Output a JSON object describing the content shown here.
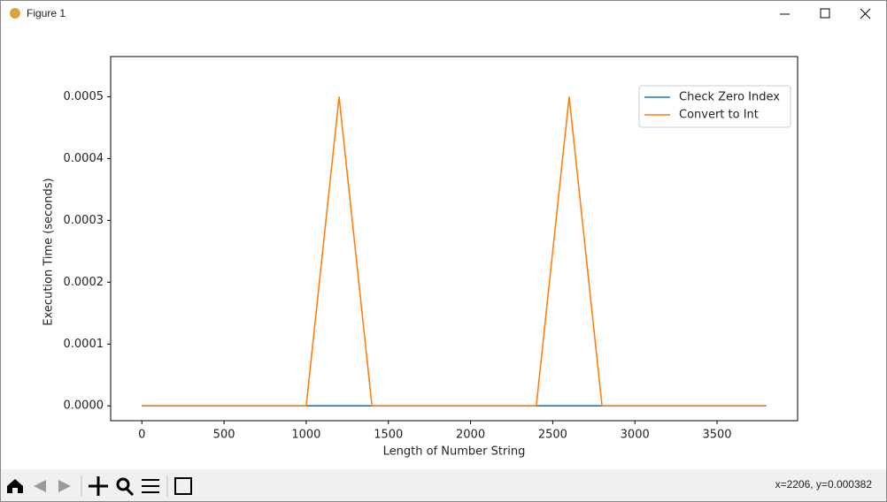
{
  "window": {
    "title": "Figure 1",
    "status": "x=2206, y=0.000382"
  },
  "chart_data": {
    "type": "line",
    "x_label": "Length of Number String",
    "y_label": "Execution Time (seconds)",
    "x": [
      0,
      200,
      400,
      600,
      800,
      1000,
      1200,
      1400,
      1600,
      1800,
      2000,
      2200,
      2400,
      2600,
      2800,
      3000,
      3200,
      3400,
      3600,
      3800
    ],
    "series": [
      {
        "name": "Check Zero Index",
        "color": "#1f77b4",
        "values": [
          0,
          0,
          0,
          0,
          0,
          0,
          0,
          0,
          0,
          0,
          0,
          0,
          0,
          0,
          0,
          0,
          0,
          0,
          0,
          0
        ]
      },
      {
        "name": "Convert to Int",
        "color": "#ff7f0e",
        "values": [
          0,
          0,
          0,
          0,
          0,
          0,
          0.0005,
          0,
          0,
          0,
          0,
          0,
          0,
          0.0005,
          0,
          0,
          0,
          0,
          0,
          0
        ]
      }
    ],
    "xlim": [
      -190,
      3990
    ],
    "ylim": [
      -2.4e-05,
      0.000565
    ],
    "xticks": [
      0,
      500,
      1000,
      1500,
      2000,
      2500,
      3000,
      3500
    ],
    "yticks": [
      {
        "value": 0,
        "label": "0.0000"
      },
      {
        "value": 0.0001,
        "label": "0.0001"
      },
      {
        "value": 0.0002,
        "label": "0.0002"
      },
      {
        "value": 0.0003,
        "label": "0.0003"
      },
      {
        "value": 0.0004,
        "label": "0.0004"
      },
      {
        "value": 0.0005,
        "label": "0.0005"
      }
    ],
    "legend": "upper right"
  }
}
